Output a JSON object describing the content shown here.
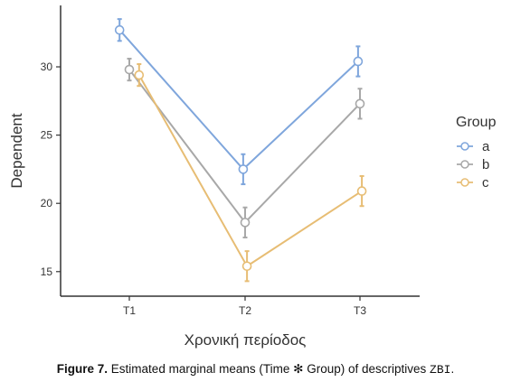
{
  "chart_data": {
    "type": "line",
    "categories": [
      "T1",
      "T2",
      "T3"
    ],
    "xlabel": "Χρονική περίοδος",
    "ylabel": "Dependent",
    "ylim": [
      13.2,
      34.5
    ],
    "yticks": [
      15,
      20,
      25,
      30
    ],
    "grid": false,
    "legend": {
      "title": "Group",
      "position": "right"
    },
    "series": [
      {
        "name": "a",
        "color": "#7fa6dc",
        "values": [
          32.7,
          22.5,
          30.4
        ],
        "err": [
          0.8,
          1.1,
          1.1
        ]
      },
      {
        "name": "b",
        "color": "#a8a8a8",
        "values": [
          29.8,
          18.6,
          27.3
        ],
        "err": [
          0.8,
          1.1,
          1.1
        ]
      },
      {
        "name": "c",
        "color": "#e7bd74",
        "values": [
          29.4,
          15.4,
          20.9
        ],
        "err": [
          0.8,
          1.1,
          1.1
        ]
      }
    ]
  },
  "caption": {
    "figure_label": "Figure 7.",
    "text": "Estimated marginal means (Time",
    "symbol": "✻",
    "text2": "Group) of descriptives",
    "var_name": "ZBI",
    "end": "."
  }
}
